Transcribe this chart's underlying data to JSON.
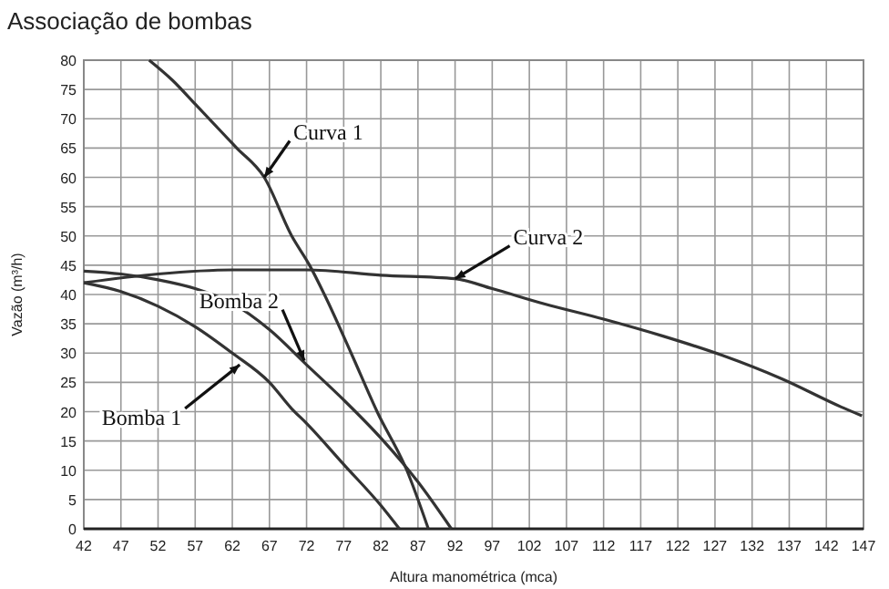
{
  "chart_data": {
    "type": "line",
    "title": "Associação de bombas",
    "xlabel": "Altura manométrica (mca)",
    "ylabel": "Vazão (m³/h)",
    "xlim": [
      42,
      147
    ],
    "xticks": [
      42,
      47,
      52,
      57,
      62,
      67,
      72,
      77,
      82,
      87,
      92,
      97,
      102,
      107,
      112,
      117,
      122,
      127,
      132,
      137,
      142,
      147
    ],
    "ylim": [
      0,
      80
    ],
    "yticks": [
      0,
      5,
      10,
      15,
      20,
      25,
      30,
      35,
      40,
      45,
      50,
      55,
      60,
      65,
      70,
      75,
      80
    ],
    "grid": true,
    "line_style": "solid",
    "series": [
      {
        "color": "#333333",
        "x": [
          42,
          47,
          52,
          57,
          62,
          67,
          70,
          72,
          77,
          82,
          84.5
        ],
        "values": [
          42,
          40.5,
          38,
          34.5,
          30,
          25,
          20.5,
          18,
          11,
          4,
          0
        ]
      },
      {
        "color": "#333333",
        "x": [
          42,
          47,
          52,
          57,
          62,
          67,
          72,
          77,
          82,
          87,
          91.5
        ],
        "values": [
          44,
          43.5,
          42.5,
          41,
          38.5,
          34,
          28,
          22,
          15.5,
          8,
          0
        ]
      },
      {
        "color": "#333333",
        "x": [
          50.8,
          54,
          57,
          62.6,
          66.3,
          70,
          72.4,
          74.4,
          78,
          81.5,
          85.5,
          88.4
        ],
        "values": [
          80,
          76.5,
          72.5,
          65,
          60,
          50,
          45,
          40,
          30,
          20,
          10,
          0
        ]
      },
      {
        "color": "#333333",
        "x": [
          42,
          52,
          62,
          72,
          82,
          92,
          97,
          104,
          112,
          120,
          128,
          136,
          144,
          146.8
        ],
        "values": [
          42,
          43.5,
          44.2,
          44.2,
          43.3,
          42.7,
          41,
          38.4,
          35.8,
          32.9,
          29.6,
          25.6,
          20.8,
          19.3
        ]
      }
    ],
    "annotations": [
      {
        "text": "Curva 1",
        "x": 66.3,
        "y": 60
      },
      {
        "text": "Curva 2",
        "x": 92,
        "y": 42.7
      },
      {
        "text": "Bomba 2",
        "x": 71.7,
        "y": 28.7
      },
      {
        "text": "Bomba 1",
        "x": 63,
        "y": 28
      }
    ]
  }
}
